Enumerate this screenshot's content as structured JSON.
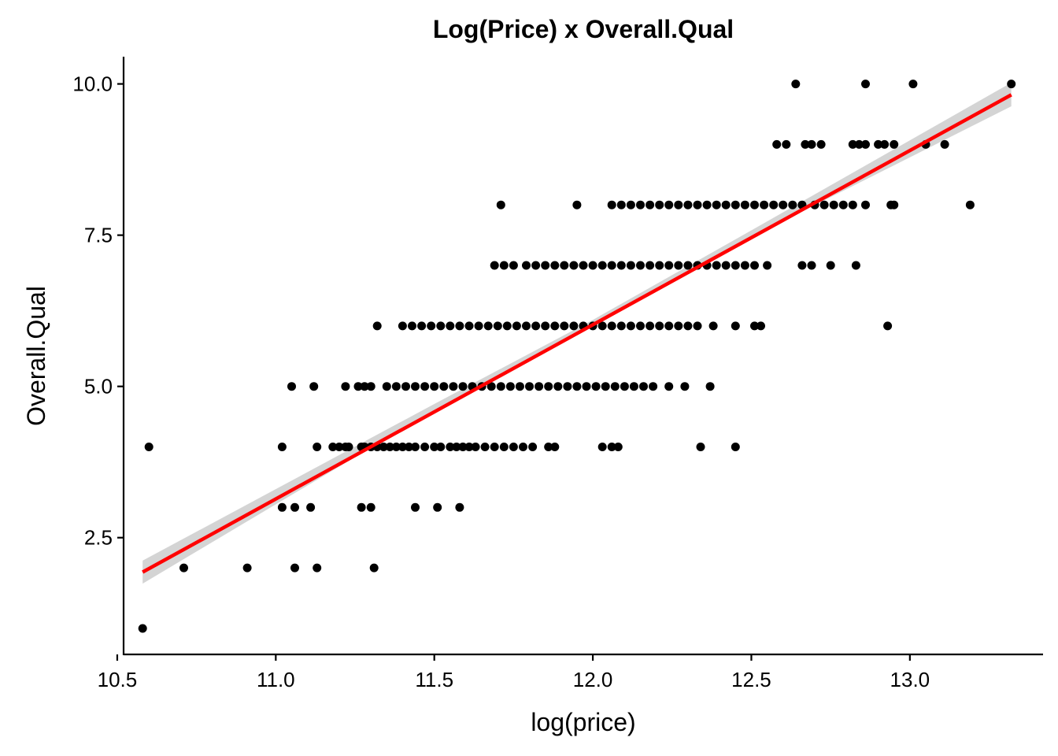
{
  "chart_data": {
    "type": "scatter",
    "title": "Log(Price) x Overall.Qual",
    "xlabel": "log(price)",
    "ylabel": "Overall.Qual",
    "xlim": [
      10.52,
      13.42
    ],
    "ylim": [
      0.57,
      10.45
    ],
    "x_ticks": [
      10.5,
      11.0,
      11.5,
      12.0,
      12.5,
      13.0
    ],
    "x_tick_labels": [
      "10.5",
      "11.0",
      "11.5",
      "12.0",
      "12.5",
      "13.0"
    ],
    "y_ticks": [
      2.5,
      5.0,
      7.5,
      10.0
    ],
    "y_tick_labels": [
      "2.5",
      "5.0",
      "7.5",
      "10.0"
    ],
    "grid": false,
    "legend": "none",
    "colors": {
      "points": "#000000",
      "fit_line": "#ff0000",
      "confidence_band": "#cccccc",
      "axis": "#000000"
    },
    "fit_line": {
      "x": [
        10.58,
        13.32
      ],
      "y": [
        1.93,
        9.82
      ]
    },
    "confidence_band": {
      "x": [
        10.58,
        11.5,
        12.0,
        12.5,
        13.32
      ],
      "lower": [
        1.74,
        4.61,
        6.03,
        7.47,
        9.63
      ],
      "upper": [
        2.12,
        4.71,
        6.1,
        7.58,
        10.02
      ]
    },
    "series": [
      {
        "points": [
          [
            10.58,
            1
          ],
          [
            10.71,
            2
          ],
          [
            10.91,
            2
          ],
          [
            11.06,
            2
          ],
          [
            11.13,
            2
          ],
          [
            11.31,
            2
          ],
          [
            11.02,
            3
          ],
          [
            11.06,
            3
          ],
          [
            11.11,
            3
          ],
          [
            11.27,
            3
          ],
          [
            11.3,
            3
          ],
          [
            11.44,
            3
          ],
          [
            11.51,
            3
          ],
          [
            11.58,
            3
          ],
          [
            10.6,
            4
          ],
          [
            11.02,
            4
          ],
          [
            11.13,
            4
          ],
          [
            11.18,
            4
          ],
          [
            11.2,
            4
          ],
          [
            11.22,
            4
          ],
          [
            11.23,
            4
          ],
          [
            11.27,
            4
          ],
          [
            11.28,
            4
          ],
          [
            11.3,
            4
          ],
          [
            11.32,
            4
          ],
          [
            11.34,
            4
          ],
          [
            11.36,
            4
          ],
          [
            11.38,
            4
          ],
          [
            11.4,
            4
          ],
          [
            11.42,
            4
          ],
          [
            11.44,
            4
          ],
          [
            11.47,
            4
          ],
          [
            11.5,
            4
          ],
          [
            11.52,
            4
          ],
          [
            11.55,
            4
          ],
          [
            11.57,
            4
          ],
          [
            11.59,
            4
          ],
          [
            11.61,
            4
          ],
          [
            11.63,
            4
          ],
          [
            11.66,
            4
          ],
          [
            11.69,
            4
          ],
          [
            11.72,
            4
          ],
          [
            11.75,
            4
          ],
          [
            11.78,
            4
          ],
          [
            11.81,
            4
          ],
          [
            11.86,
            4
          ],
          [
            11.88,
            4
          ],
          [
            12.03,
            4
          ],
          [
            12.06,
            4
          ],
          [
            12.08,
            4
          ],
          [
            12.34,
            4
          ],
          [
            12.45,
            4
          ],
          [
            11.05,
            5
          ],
          [
            11.12,
            5
          ],
          [
            11.22,
            5
          ],
          [
            11.26,
            5
          ],
          [
            11.28,
            5
          ],
          [
            11.3,
            5
          ],
          [
            11.35,
            5
          ],
          [
            11.38,
            5
          ],
          [
            11.41,
            5
          ],
          [
            11.44,
            5
          ],
          [
            11.47,
            5
          ],
          [
            11.5,
            5
          ],
          [
            11.53,
            5
          ],
          [
            11.56,
            5
          ],
          [
            11.59,
            5
          ],
          [
            11.62,
            5
          ],
          [
            11.65,
            5
          ],
          [
            11.68,
            5
          ],
          [
            11.71,
            5
          ],
          [
            11.74,
            5
          ],
          [
            11.77,
            5
          ],
          [
            11.8,
            5
          ],
          [
            11.83,
            5
          ],
          [
            11.86,
            5
          ],
          [
            11.89,
            5
          ],
          [
            11.92,
            5
          ],
          [
            11.95,
            5
          ],
          [
            11.98,
            5
          ],
          [
            12.01,
            5
          ],
          [
            12.04,
            5
          ],
          [
            12.07,
            5
          ],
          [
            12.1,
            5
          ],
          [
            12.13,
            5
          ],
          [
            12.16,
            5
          ],
          [
            12.19,
            5
          ],
          [
            12.24,
            5
          ],
          [
            12.29,
            5
          ],
          [
            12.37,
            5
          ],
          [
            11.32,
            6
          ],
          [
            11.4,
            6
          ],
          [
            11.43,
            6
          ],
          [
            11.46,
            6
          ],
          [
            11.49,
            6
          ],
          [
            11.52,
            6
          ],
          [
            11.55,
            6
          ],
          [
            11.58,
            6
          ],
          [
            11.61,
            6
          ],
          [
            11.64,
            6
          ],
          [
            11.67,
            6
          ],
          [
            11.7,
            6
          ],
          [
            11.73,
            6
          ],
          [
            11.76,
            6
          ],
          [
            11.79,
            6
          ],
          [
            11.82,
            6
          ],
          [
            11.85,
            6
          ],
          [
            11.88,
            6
          ],
          [
            11.91,
            6
          ],
          [
            11.94,
            6
          ],
          [
            11.97,
            6
          ],
          [
            12.0,
            6
          ],
          [
            12.03,
            6
          ],
          [
            12.06,
            6
          ],
          [
            12.09,
            6
          ],
          [
            12.12,
            6
          ],
          [
            12.15,
            6
          ],
          [
            12.18,
            6
          ],
          [
            12.21,
            6
          ],
          [
            12.24,
            6
          ],
          [
            12.27,
            6
          ],
          [
            12.3,
            6
          ],
          [
            12.33,
            6
          ],
          [
            12.38,
            6
          ],
          [
            12.45,
            6
          ],
          [
            12.51,
            6
          ],
          [
            12.53,
            6
          ],
          [
            12.93,
            6
          ],
          [
            11.69,
            7
          ],
          [
            11.72,
            7
          ],
          [
            11.75,
            7
          ],
          [
            11.79,
            7
          ],
          [
            11.82,
            7
          ],
          [
            11.85,
            7
          ],
          [
            11.88,
            7
          ],
          [
            11.91,
            7
          ],
          [
            11.94,
            7
          ],
          [
            11.97,
            7
          ],
          [
            12.0,
            7
          ],
          [
            12.03,
            7
          ],
          [
            12.06,
            7
          ],
          [
            12.09,
            7
          ],
          [
            12.12,
            7
          ],
          [
            12.15,
            7
          ],
          [
            12.18,
            7
          ],
          [
            12.21,
            7
          ],
          [
            12.24,
            7
          ],
          [
            12.27,
            7
          ],
          [
            12.3,
            7
          ],
          [
            12.33,
            7
          ],
          [
            12.36,
            7
          ],
          [
            12.39,
            7
          ],
          [
            12.42,
            7
          ],
          [
            12.45,
            7
          ],
          [
            12.48,
            7
          ],
          [
            12.51,
            7
          ],
          [
            12.55,
            7
          ],
          [
            12.66,
            7
          ],
          [
            12.69,
            7
          ],
          [
            12.75,
            7
          ],
          [
            12.83,
            7
          ],
          [
            11.71,
            8
          ],
          [
            11.95,
            8
          ],
          [
            12.06,
            8
          ],
          [
            12.09,
            8
          ],
          [
            12.12,
            8
          ],
          [
            12.15,
            8
          ],
          [
            12.18,
            8
          ],
          [
            12.21,
            8
          ],
          [
            12.24,
            8
          ],
          [
            12.27,
            8
          ],
          [
            12.3,
            8
          ],
          [
            12.33,
            8
          ],
          [
            12.36,
            8
          ],
          [
            12.39,
            8
          ],
          [
            12.42,
            8
          ],
          [
            12.45,
            8
          ],
          [
            12.48,
            8
          ],
          [
            12.51,
            8
          ],
          [
            12.54,
            8
          ],
          [
            12.57,
            8
          ],
          [
            12.6,
            8
          ],
          [
            12.63,
            8
          ],
          [
            12.66,
            8
          ],
          [
            12.7,
            8
          ],
          [
            12.73,
            8
          ],
          [
            12.76,
            8
          ],
          [
            12.79,
            8
          ],
          [
            12.82,
            8
          ],
          [
            12.86,
            8
          ],
          [
            12.94,
            8
          ],
          [
            12.95,
            8
          ],
          [
            13.19,
            8
          ],
          [
            12.58,
            9
          ],
          [
            12.61,
            9
          ],
          [
            12.67,
            9
          ],
          [
            12.69,
            9
          ],
          [
            12.72,
            9
          ],
          [
            12.82,
            9
          ],
          [
            12.84,
            9
          ],
          [
            12.86,
            9
          ],
          [
            12.9,
            9
          ],
          [
            12.92,
            9
          ],
          [
            12.95,
            9
          ],
          [
            13.05,
            9
          ],
          [
            13.11,
            9
          ],
          [
            12.64,
            10
          ],
          [
            12.86,
            10
          ],
          [
            13.01,
            10
          ],
          [
            13.32,
            10
          ]
        ]
      }
    ]
  }
}
